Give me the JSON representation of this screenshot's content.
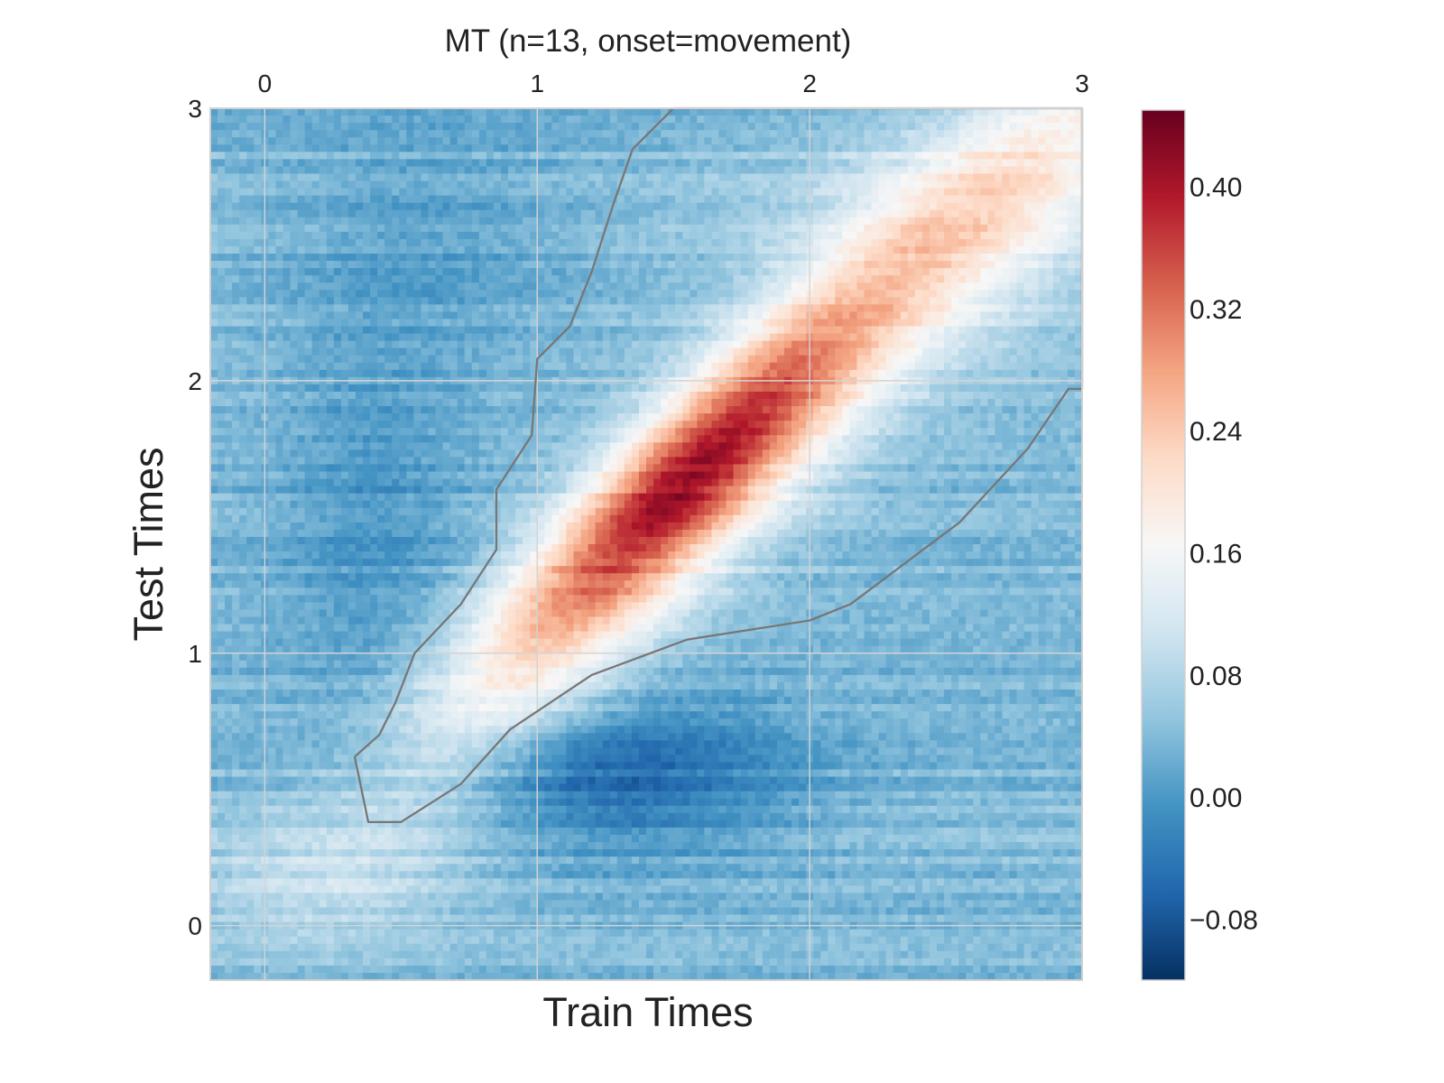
{
  "chart_data": {
    "type": "heatmap",
    "title": "MT (n=13, onset=movement)",
    "xlabel": "Train Times",
    "ylabel": "Test Times",
    "xlim": [
      -0.2,
      3.0
    ],
    "ylim": [
      -0.2,
      3.0
    ],
    "x_ticks": [
      0,
      1,
      2,
      3
    ],
    "y_ticks": [
      0,
      1,
      2,
      3
    ],
    "x_tick_labels": [
      "0",
      "1",
      "2",
      "3"
    ],
    "y_tick_labels": [
      "0",
      "1",
      "2",
      "3"
    ],
    "x_axis_position": "top",
    "grid": true,
    "colormap": "RdBu_r",
    "colorbar": {
      "vmin": -0.12,
      "vmax": 0.45,
      "ticks": [
        -0.08,
        0.0,
        0.08,
        0.16,
        0.24,
        0.32,
        0.4
      ],
      "tick_labels": [
        "−0.08",
        "0.00",
        "0.08",
        "0.16",
        "0.24",
        "0.32",
        "0.40"
      ],
      "position": "right"
    },
    "colormap_stops": [
      "#053061",
      "#2166ac",
      "#4393c3",
      "#92c5de",
      "#d1e5f0",
      "#f7f7f7",
      "#fddbc7",
      "#f4a582",
      "#d6604d",
      "#b2182b",
      "#67001f"
    ],
    "surface_description": {
      "peak": {
        "train": 1.55,
        "test": 1.65,
        "value": 0.42
      },
      "ridge": "diagonal band of high values along train ≈ test from about 0.4 to 3.0",
      "background": "values around -0.02 to 0.05 away from diagonal",
      "trough": {
        "train": 1.3,
        "test": 0.55,
        "value": -0.08
      }
    },
    "significance_contour": {
      "color": "#777777",
      "points": [
        [
          0.33,
          0.62
        ],
        [
          0.38,
          0.38
        ],
        [
          0.5,
          0.38
        ],
        [
          0.72,
          0.52
        ],
        [
          0.9,
          0.72
        ],
        [
          1.2,
          0.92
        ],
        [
          1.55,
          1.05
        ],
        [
          2.0,
          1.12
        ],
        [
          2.15,
          1.18
        ],
        [
          2.55,
          1.48
        ],
        [
          2.8,
          1.75
        ],
        [
          2.95,
          1.97
        ],
        [
          3.0,
          1.97
        ],
        [
          3.0,
          3.0
        ],
        [
          1.5,
          3.0
        ],
        [
          1.35,
          2.85
        ],
        [
          1.28,
          2.65
        ],
        [
          1.2,
          2.4
        ],
        [
          1.12,
          2.2
        ],
        [
          1.0,
          2.08
        ],
        [
          0.98,
          1.8
        ],
        [
          0.85,
          1.6
        ],
        [
          0.85,
          1.38
        ],
        [
          0.72,
          1.18
        ],
        [
          0.55,
          1.0
        ],
        [
          0.48,
          0.82
        ],
        [
          0.42,
          0.7
        ],
        [
          0.33,
          0.62
        ]
      ]
    }
  }
}
